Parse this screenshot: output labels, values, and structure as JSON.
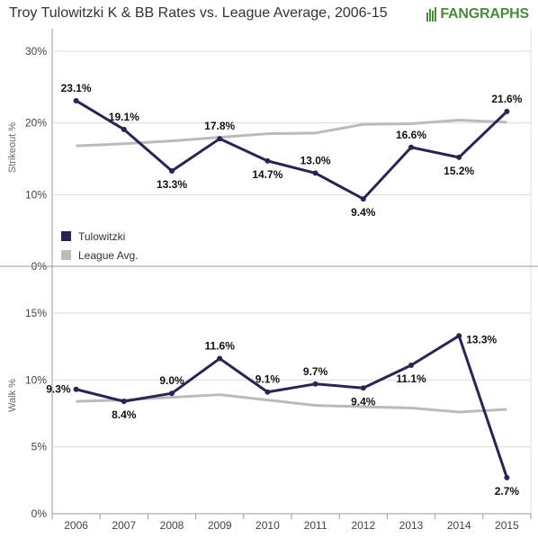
{
  "title": "Troy Tulowitzki K & BB Rates vs. League Average, 2006-15",
  "logo": {
    "part1": "FAN",
    "part2": "GRAPHS"
  },
  "colors": {
    "player": "#2a2550",
    "league": "#bbbbbb",
    "grid": "#dddddd",
    "axis": "#999999"
  },
  "chart_data": [
    {
      "type": "line",
      "ylabel": "Strikeout %",
      "x": [
        "2006",
        "2007",
        "2008",
        "2009",
        "2010",
        "2011",
        "2012",
        "2013",
        "2014",
        "2015"
      ],
      "ylim": [
        0,
        30
      ],
      "yticks": [
        0,
        10,
        20,
        30
      ],
      "ytick_labels": [
        "0%",
        "10%",
        "20%",
        "30%"
      ],
      "series": [
        {
          "name": "Tulowitzki",
          "values": [
            23.1,
            19.1,
            13.3,
            17.8,
            14.7,
            13.0,
            9.4,
            16.6,
            15.2,
            21.6
          ],
          "labels": [
            "23.1%",
            "19.1%",
            "13.3%",
            "17.8%",
            "14.7%",
            "13.0%",
            "9.4%",
            "16.6%",
            "15.2%",
            "21.6%"
          ],
          "label_pos": [
            "above",
            "above",
            "below",
            "above",
            "below",
            "above",
            "below",
            "above",
            "below",
            "above"
          ]
        },
        {
          "name": "League Avg.",
          "values": [
            16.8,
            17.1,
            17.5,
            18.0,
            18.5,
            18.6,
            19.8,
            19.9,
            20.4,
            20.1
          ]
        }
      ],
      "legend": {
        "position": "bottom-left"
      }
    },
    {
      "type": "line",
      "ylabel": "Walk %",
      "x": [
        "2006",
        "2007",
        "2008",
        "2009",
        "2010",
        "2011",
        "2012",
        "2013",
        "2014",
        "2015"
      ],
      "ylim": [
        0,
        15
      ],
      "yticks": [
        0,
        5,
        10,
        15
      ],
      "ytick_labels": [
        "0%",
        "5%",
        "10%",
        "15%"
      ],
      "series": [
        {
          "name": "Tulowitzki",
          "values": [
            9.3,
            8.4,
            9.0,
            11.6,
            9.1,
            9.7,
            9.4,
            11.1,
            13.3,
            2.7
          ],
          "labels": [
            "9.3%",
            "8.4%",
            "9.0%",
            "11.6%",
            "9.1%",
            "9.7%",
            "9.4%",
            "11.1%",
            "13.3%",
            "2.7%"
          ],
          "label_pos": [
            "left",
            "below",
            "above",
            "above",
            "above",
            "above",
            "below",
            "below",
            "right",
            "below"
          ]
        },
        {
          "name": "League Avg.",
          "values": [
            8.4,
            8.5,
            8.7,
            8.9,
            8.5,
            8.1,
            8.0,
            7.9,
            7.6,
            7.8
          ]
        }
      ]
    }
  ]
}
